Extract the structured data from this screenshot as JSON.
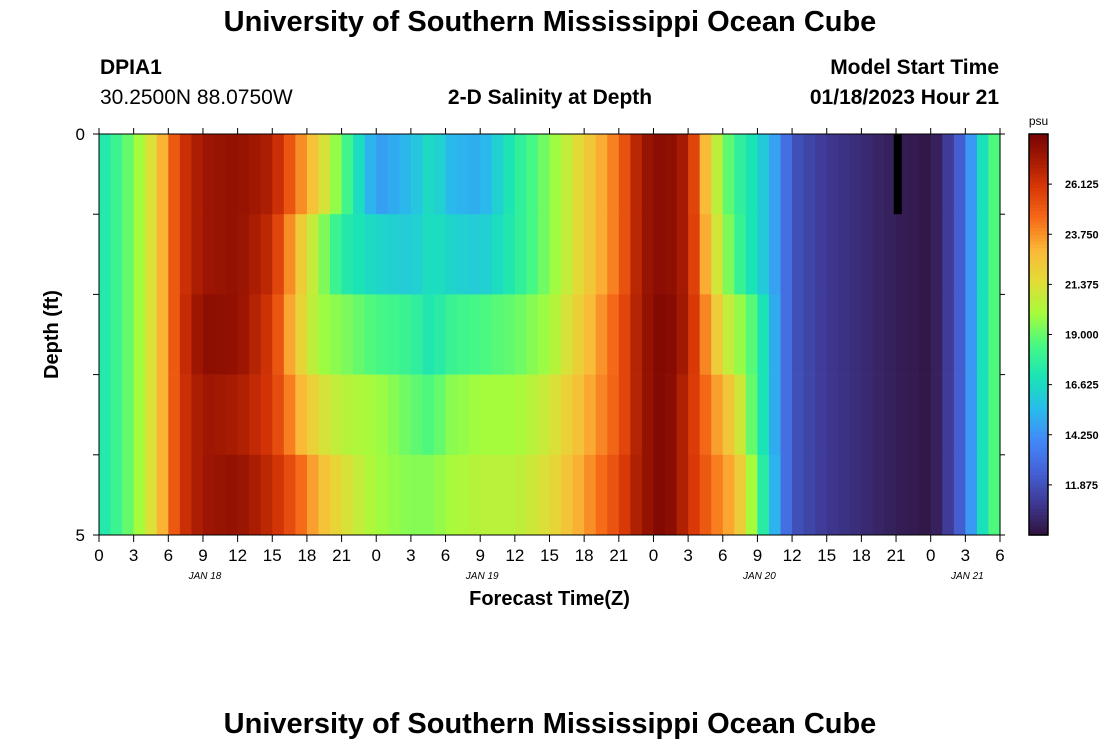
{
  "page": {
    "title_top": "University of Southern Mississippi Ocean Cube",
    "title_bottom": "University of Southern Mississippi Ocean Cube",
    "station_id": "DPIA1",
    "station_coords": "30.2500N  88.0750W",
    "plot_title": "2-D Salinity at Depth",
    "model_start_label": "Model Start Time",
    "model_start_value": "01/18/2023 Hour 21"
  },
  "chart_data": {
    "type": "heatmap",
    "title": "2-D Salinity at Depth",
    "xlabel": "Forecast Time(Z)",
    "ylabel": "Depth (ft)",
    "x_ticks": [
      "0",
      "3",
      "6",
      "9",
      "12",
      "15",
      "18",
      "21",
      "0",
      "3",
      "6",
      "9",
      "12",
      "15",
      "18",
      "21",
      "0",
      "3",
      "6",
      "9",
      "12",
      "15",
      "18",
      "21",
      "0",
      "3",
      "6"
    ],
    "x_date_labels": [
      "JAN 18",
      "JAN 19",
      "JAN 20",
      "JAN 21"
    ],
    "x_date_label_tick_index": [
      3,
      11,
      19,
      25
    ],
    "xlim": [
      0,
      78
    ],
    "y_ticks": [
      "0",
      "5"
    ],
    "ylim": [
      0,
      5
    ],
    "colorbar": {
      "unit": "psu",
      "ticks": [
        "26.125",
        "23.750",
        "21.375",
        "19.000",
        "16.625",
        "14.250",
        "11.875"
      ],
      "range": [
        9.5,
        28.5
      ],
      "colormap": [
        {
          "v": 9.5,
          "c": "#30123b"
        },
        {
          "v": 11.0,
          "c": "#3e3891"
        },
        {
          "v": 12.5,
          "c": "#4461d7"
        },
        {
          "v": 14.0,
          "c": "#4388f7"
        },
        {
          "v": 15.5,
          "c": "#28bceb"
        },
        {
          "v": 17.0,
          "c": "#1ae4b6"
        },
        {
          "v": 18.5,
          "c": "#46f884"
        },
        {
          "v": 20.0,
          "c": "#a4fc3c"
        },
        {
          "v": 21.5,
          "c": "#e1dd37"
        },
        {
          "v": 23.0,
          "c": "#fbb938"
        },
        {
          "v": 24.5,
          "c": "#f66b18"
        },
        {
          "v": 26.0,
          "c": "#d93807"
        },
        {
          "v": 27.3,
          "c": "#a41a02"
        },
        {
          "v": 28.5,
          "c": "#7a0403"
        }
      ]
    },
    "depth_bands": [
      0,
      1,
      2,
      3,
      4,
      5
    ],
    "time_keypoints": [
      0,
      2,
      4,
      6,
      7,
      9,
      12,
      15,
      17,
      19,
      21,
      24,
      27,
      29,
      30,
      33,
      36,
      39,
      42,
      45,
      47,
      49,
      51,
      53,
      55,
      56,
      57,
      58,
      59,
      60,
      63,
      66,
      69,
      72,
      73,
      75,
      76,
      78
    ],
    "values": [
      [
        17.0,
        18.5,
        20.5,
        24.0,
        26.0,
        27.5,
        27.8,
        27.0,
        24.5,
        22.0,
        19.0,
        14.5,
        15.5,
        17.0,
        15.5,
        15.0,
        17.5,
        19.5,
        22.0,
        24.5,
        27.5,
        28.2,
        27.0,
        21.5,
        18.0,
        17.5,
        16.5,
        15.5,
        14.0,
        12.0,
        11.0,
        10.5,
        10.0,
        9.7,
        10.5,
        13.0,
        16.0,
        19.5
      ],
      [
        17.0,
        18.5,
        20.5,
        24.0,
        26.0,
        27.5,
        27.8,
        26.5,
        23.0,
        20.0,
        17.5,
        16.5,
        16.0,
        17.0,
        16.5,
        16.0,
        17.5,
        19.5,
        22.0,
        24.5,
        27.5,
        28.2,
        27.0,
        22.0,
        18.5,
        17.5,
        16.5,
        15.5,
        14.0,
        12.0,
        11.0,
        10.5,
        10.0,
        9.7,
        10.5,
        13.0,
        16.0,
        19.5
      ],
      [
        17.0,
        18.5,
        20.5,
        24.0,
        26.0,
        28.0,
        27.8,
        26.0,
        22.5,
        20.0,
        19.5,
        18.5,
        18.0,
        17.0,
        18.0,
        18.5,
        19.0,
        20.0,
        22.5,
        25.0,
        27.5,
        28.5,
        27.0,
        23.0,
        20.0,
        19.5,
        18.0,
        16.0,
        14.0,
        12.0,
        11.0,
        10.5,
        10.0,
        9.7,
        10.5,
        13.0,
        16.0,
        19.5
      ],
      [
        17.0,
        18.5,
        20.5,
        24.0,
        26.0,
        27.5,
        27.2,
        26.0,
        23.5,
        21.5,
        20.5,
        20.0,
        19.0,
        18.5,
        19.5,
        20.0,
        20.0,
        21.0,
        23.0,
        25.0,
        27.5,
        28.5,
        26.5,
        24.0,
        22.0,
        20.0,
        18.0,
        16.0,
        14.0,
        12.0,
        11.0,
        10.5,
        10.0,
        9.7,
        10.5,
        13.0,
        16.0,
        19.5
      ],
      [
        17.0,
        18.5,
        20.5,
        24.0,
        26.0,
        27.5,
        27.8,
        26.5,
        25.0,
        23.0,
        21.5,
        20.0,
        19.5,
        19.5,
        20.0,
        20.5,
        20.5,
        21.5,
        23.5,
        25.5,
        27.5,
        28.5,
        26.5,
        24.5,
        23.0,
        21.5,
        18.5,
        16.5,
        14.0,
        12.0,
        11.0,
        10.5,
        10.0,
        9.7,
        10.5,
        13.0,
        16.0,
        19.5
      ],
      [
        17.0,
        18.5,
        20.5,
        24.0,
        26.0,
        27.8,
        28.2,
        27.5,
        25.5,
        23.0,
        21.0,
        20.0,
        20.0,
        19.5,
        20.0,
        20.5,
        21.0,
        22.0,
        24.0,
        26.0,
        28.0,
        28.8,
        27.0,
        24.5,
        23.5,
        22.0,
        19.0,
        17.0,
        14.0,
        12.0,
        11.0,
        10.5,
        10.0,
        9.7,
        10.5,
        13.0,
        16.0,
        19.5
      ]
    ],
    "missing_patch": {
      "time_start": 68.8,
      "time_end": 69.5,
      "depth_start": 0,
      "depth_end": 1
    }
  }
}
